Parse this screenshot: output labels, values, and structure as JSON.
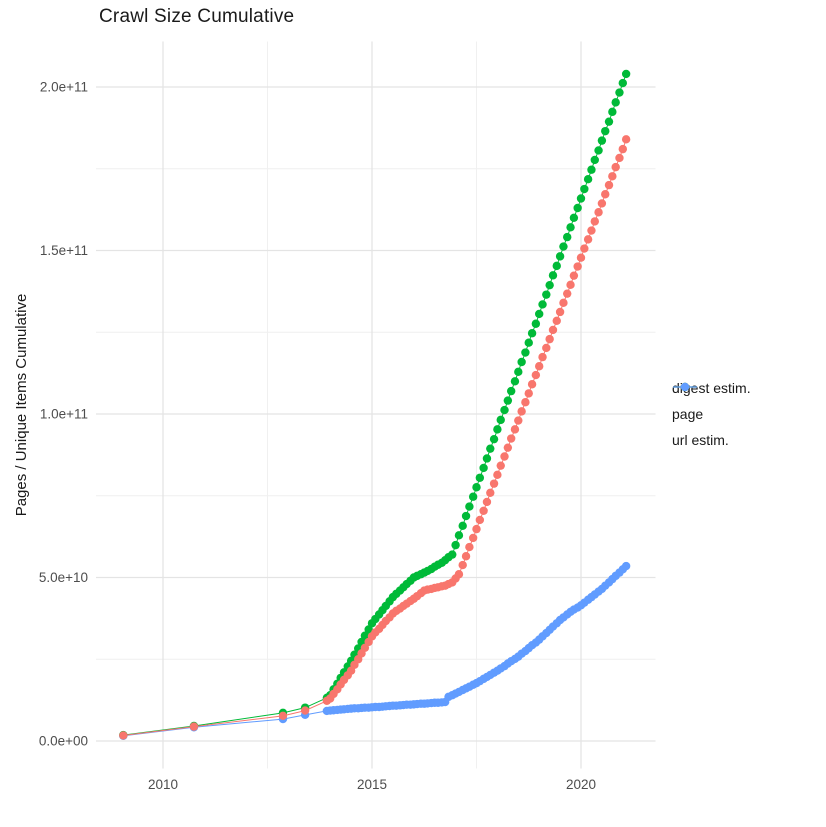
{
  "chart": {
    "title": "Crawl Size Cumulative",
    "y_axis_title": "Pages / Unique Items Cumulative"
  },
  "legend": {
    "items": [
      {
        "label": "digest estim.",
        "color": "#F8766D"
      },
      {
        "label": "page",
        "color": "#00BA38"
      },
      {
        "label": "url estim.",
        "color": "#619CFF"
      }
    ]
  },
  "chart_data": {
    "type": "scatter",
    "title": "Crawl Size Cumulative",
    "xlabel": "",
    "ylabel": "Pages / Unique Items Cumulative",
    "x_unit": "year",
    "y_value_multiplier": 1000000000,
    "note": "point values are in billions (1e9); y axis shows scientific notation",
    "xlim": [
      2008.4,
      2021.75
    ],
    "ylim_e9": [
      -8.5,
      214
    ],
    "grid": true,
    "legend_position": "right",
    "x_ticks": [
      {
        "value": 2010,
        "label": "2010"
      },
      {
        "value": 2015,
        "label": "2015"
      },
      {
        "value": 2020,
        "label": "2020"
      }
    ],
    "x_minor_gridlines": [
      2012.5,
      2017.5
    ],
    "y_ticks": [
      {
        "value": 0,
        "label": "0.0e+00"
      },
      {
        "value": 50,
        "label": "5.0e+10"
      },
      {
        "value": 100,
        "label": "1.0e+11"
      },
      {
        "value": 150,
        "label": "1.5e+11"
      },
      {
        "value": 200,
        "label": "2.0e+11"
      }
    ],
    "y_minor_gridlines": [
      25,
      75,
      125,
      175
    ],
    "series": [
      {
        "name": "digest estim.",
        "color": "#F8766D",
        "points": [
          [
            2009.05,
            1.7
          ],
          [
            2010.74,
            4.4
          ],
          [
            2012.87,
            7.7
          ],
          [
            2013.4,
            9.3
          ],
          [
            2013.92,
            12.3
          ],
          [
            2014.0,
            13.0
          ],
          [
            2014.08,
            14.4
          ],
          [
            2014.17,
            15.8
          ],
          [
            2014.25,
            17.3
          ],
          [
            2014.33,
            18.7
          ],
          [
            2014.42,
            20.1
          ],
          [
            2014.5,
            21.5
          ],
          [
            2014.58,
            23.3
          ],
          [
            2014.67,
            25.0
          ],
          [
            2014.75,
            26.8
          ],
          [
            2014.83,
            28.5
          ],
          [
            2014.92,
            30.3
          ],
          [
            2015.0,
            32.0
          ],
          [
            2015.08,
            33.2
          ],
          [
            2015.17,
            34.3
          ],
          [
            2015.25,
            35.5
          ],
          [
            2015.33,
            36.7
          ],
          [
            2015.42,
            37.8
          ],
          [
            2015.5,
            39.0
          ],
          [
            2015.58,
            39.8
          ],
          [
            2015.67,
            40.5
          ],
          [
            2015.75,
            41.3
          ],
          [
            2015.83,
            42.0
          ],
          [
            2015.92,
            42.8
          ],
          [
            2016.0,
            43.5
          ],
          [
            2016.08,
            44.3
          ],
          [
            2016.17,
            45.2
          ],
          [
            2016.25,
            46.0
          ],
          [
            2016.33,
            46.3
          ],
          [
            2016.42,
            46.5
          ],
          [
            2016.5,
            46.8
          ],
          [
            2016.58,
            47.0
          ],
          [
            2016.67,
            47.3
          ],
          [
            2016.75,
            47.5
          ],
          [
            2016.83,
            48.0
          ],
          [
            2016.92,
            48.5
          ],
          [
            2017.0,
            49.7
          ],
          [
            2017.08,
            51.0
          ],
          [
            2017.17,
            53.8
          ],
          [
            2017.25,
            56.5
          ],
          [
            2017.33,
            59.3
          ],
          [
            2017.42,
            62.1
          ],
          [
            2017.5,
            64.8
          ],
          [
            2017.58,
            67.6
          ],
          [
            2017.67,
            70.4
          ],
          [
            2017.75,
            73.1
          ],
          [
            2017.83,
            75.9
          ],
          [
            2017.92,
            78.7
          ],
          [
            2018.0,
            81.4
          ],
          [
            2018.08,
            84.2
          ],
          [
            2018.17,
            87.0
          ],
          [
            2018.25,
            89.7
          ],
          [
            2018.33,
            92.5
          ],
          [
            2018.42,
            95.3
          ],
          [
            2018.5,
            98.0
          ],
          [
            2018.58,
            100.8
          ],
          [
            2018.67,
            103.6
          ],
          [
            2018.75,
            106.3
          ],
          [
            2018.83,
            109.1
          ],
          [
            2018.92,
            111.9
          ],
          [
            2019.0,
            114.6
          ],
          [
            2019.08,
            117.4
          ],
          [
            2019.17,
            120.2
          ],
          [
            2019.25,
            122.9
          ],
          [
            2019.33,
            125.7
          ],
          [
            2019.42,
            128.5
          ],
          [
            2019.5,
            131.2
          ],
          [
            2019.58,
            134.0
          ],
          [
            2019.67,
            136.8
          ],
          [
            2019.75,
            139.5
          ],
          [
            2019.83,
            142.3
          ],
          [
            2019.92,
            145.1
          ],
          [
            2020.0,
            147.8
          ],
          [
            2020.08,
            150.6
          ],
          [
            2020.17,
            153.4
          ],
          [
            2020.25,
            156.1
          ],
          [
            2020.33,
            158.9
          ],
          [
            2020.42,
            161.7
          ],
          [
            2020.5,
            164.4
          ],
          [
            2020.58,
            167.2
          ],
          [
            2020.67,
            170.0
          ],
          [
            2020.75,
            172.7
          ],
          [
            2020.83,
            175.5
          ],
          [
            2020.92,
            178.3
          ],
          [
            2021.0,
            181.0
          ],
          [
            2021.08,
            184.0
          ]
        ]
      },
      {
        "name": "page",
        "color": "#00BA38",
        "points": [
          [
            2009.05,
            1.8
          ],
          [
            2010.74,
            4.6
          ],
          [
            2012.87,
            8.6
          ],
          [
            2013.4,
            10.2
          ],
          [
            2013.92,
            13.2
          ],
          [
            2014.0,
            14.0
          ],
          [
            2014.08,
            15.8
          ],
          [
            2014.17,
            17.5
          ],
          [
            2014.25,
            19.3
          ],
          [
            2014.33,
            21.0
          ],
          [
            2014.42,
            22.8
          ],
          [
            2014.5,
            24.5
          ],
          [
            2014.58,
            26.4
          ],
          [
            2014.67,
            28.3
          ],
          [
            2014.75,
            30.3
          ],
          [
            2014.83,
            32.2
          ],
          [
            2014.92,
            34.1
          ],
          [
            2015.0,
            36.0
          ],
          [
            2015.08,
            37.3
          ],
          [
            2015.17,
            38.7
          ],
          [
            2015.25,
            40.0
          ],
          [
            2015.33,
            41.3
          ],
          [
            2015.42,
            42.7
          ],
          [
            2015.5,
            44.0
          ],
          [
            2015.58,
            45.0
          ],
          [
            2015.67,
            46.0
          ],
          [
            2015.75,
            47.0
          ],
          [
            2015.83,
            48.0
          ],
          [
            2015.92,
            49.0
          ],
          [
            2016.0,
            50.0
          ],
          [
            2016.08,
            50.5
          ],
          [
            2016.17,
            51.0
          ],
          [
            2016.25,
            51.5
          ],
          [
            2016.33,
            52.0
          ],
          [
            2016.42,
            52.6
          ],
          [
            2016.5,
            53.3
          ],
          [
            2016.58,
            53.9
          ],
          [
            2016.67,
            54.5
          ],
          [
            2016.75,
            55.3
          ],
          [
            2016.83,
            56.2
          ],
          [
            2016.92,
            57.0
          ],
          [
            2017.0,
            59.9
          ],
          [
            2017.08,
            62.9
          ],
          [
            2017.17,
            65.8
          ],
          [
            2017.25,
            68.8
          ],
          [
            2017.33,
            71.7
          ],
          [
            2017.42,
            74.7
          ],
          [
            2017.5,
            77.6
          ],
          [
            2017.58,
            80.5
          ],
          [
            2017.67,
            83.5
          ],
          [
            2017.75,
            86.4
          ],
          [
            2017.83,
            89.4
          ],
          [
            2017.92,
            92.3
          ],
          [
            2018.0,
            95.3
          ],
          [
            2018.08,
            98.2
          ],
          [
            2018.17,
            101.2
          ],
          [
            2018.25,
            104.1
          ],
          [
            2018.33,
            107.0
          ],
          [
            2018.42,
            110.0
          ],
          [
            2018.5,
            112.9
          ],
          [
            2018.58,
            115.9
          ],
          [
            2018.67,
            118.8
          ],
          [
            2018.75,
            121.8
          ],
          [
            2018.83,
            124.7
          ],
          [
            2018.92,
            127.6
          ],
          [
            2019.0,
            130.6
          ],
          [
            2019.08,
            133.5
          ],
          [
            2019.17,
            136.5
          ],
          [
            2019.25,
            139.4
          ],
          [
            2019.33,
            142.4
          ],
          [
            2019.42,
            145.3
          ],
          [
            2019.5,
            148.2
          ],
          [
            2019.58,
            151.2
          ],
          [
            2019.67,
            154.1
          ],
          [
            2019.75,
            157.1
          ],
          [
            2019.83,
            160.0
          ],
          [
            2019.92,
            163.0
          ],
          [
            2020.0,
            165.9
          ],
          [
            2020.08,
            168.8
          ],
          [
            2020.17,
            171.8
          ],
          [
            2020.25,
            174.7
          ],
          [
            2020.33,
            177.7
          ],
          [
            2020.42,
            180.6
          ],
          [
            2020.5,
            183.6
          ],
          [
            2020.58,
            186.5
          ],
          [
            2020.67,
            189.4
          ],
          [
            2020.75,
            192.4
          ],
          [
            2020.83,
            195.3
          ],
          [
            2020.92,
            198.3
          ],
          [
            2021.0,
            201.2
          ],
          [
            2021.08,
            204.0
          ]
        ]
      },
      {
        "name": "url estim.",
        "color": "#619CFF",
        "points": [
          [
            2009.05,
            1.6
          ],
          [
            2010.74,
            4.2
          ],
          [
            2012.87,
            6.7
          ],
          [
            2013.4,
            8.0
          ],
          [
            2013.92,
            9.2
          ],
          [
            2014.0,
            9.3
          ],
          [
            2014.08,
            9.4
          ],
          [
            2014.17,
            9.5
          ],
          [
            2014.25,
            9.6
          ],
          [
            2014.33,
            9.7
          ],
          [
            2014.42,
            9.8
          ],
          [
            2014.5,
            9.9
          ],
          [
            2014.58,
            10.0
          ],
          [
            2014.67,
            10.0
          ],
          [
            2014.75,
            10.1
          ],
          [
            2014.83,
            10.2
          ],
          [
            2014.92,
            10.2
          ],
          [
            2015.0,
            10.3
          ],
          [
            2015.08,
            10.4
          ],
          [
            2015.17,
            10.4
          ],
          [
            2015.25,
            10.5
          ],
          [
            2015.33,
            10.6
          ],
          [
            2015.42,
            10.7
          ],
          [
            2015.5,
            10.8
          ],
          [
            2015.58,
            10.8
          ],
          [
            2015.67,
            10.9
          ],
          [
            2015.75,
            11.0
          ],
          [
            2015.83,
            11.1
          ],
          [
            2015.92,
            11.1
          ],
          [
            2016.0,
            11.2
          ],
          [
            2016.08,
            11.3
          ],
          [
            2016.17,
            11.4
          ],
          [
            2016.25,
            11.4
          ],
          [
            2016.33,
            11.5
          ],
          [
            2016.42,
            11.6
          ],
          [
            2016.5,
            11.7
          ],
          [
            2016.58,
            11.7
          ],
          [
            2016.67,
            11.8
          ],
          [
            2016.75,
            11.9
          ],
          [
            2016.83,
            13.5
          ],
          [
            2016.92,
            14.0
          ],
          [
            2017.0,
            14.5
          ],
          [
            2017.08,
            15.0
          ],
          [
            2017.17,
            15.6
          ],
          [
            2017.25,
            16.1
          ],
          [
            2017.33,
            16.6
          ],
          [
            2017.42,
            17.2
          ],
          [
            2017.5,
            17.7
          ],
          [
            2017.58,
            18.3
          ],
          [
            2017.67,
            19.0
          ],
          [
            2017.75,
            19.6
          ],
          [
            2017.83,
            20.2
          ],
          [
            2017.92,
            20.9
          ],
          [
            2018.0,
            21.5
          ],
          [
            2018.08,
            22.2
          ],
          [
            2018.17,
            22.9
          ],
          [
            2018.25,
            23.7
          ],
          [
            2018.33,
            24.4
          ],
          [
            2018.42,
            25.1
          ],
          [
            2018.5,
            25.8
          ],
          [
            2018.58,
            26.7
          ],
          [
            2018.67,
            27.5
          ],
          [
            2018.75,
            28.4
          ],
          [
            2018.83,
            29.3
          ],
          [
            2018.92,
            30.1
          ],
          [
            2019.0,
            31.0
          ],
          [
            2019.08,
            32.0
          ],
          [
            2019.17,
            33.0
          ],
          [
            2019.25,
            34.0
          ],
          [
            2019.33,
            35.0
          ],
          [
            2019.42,
            36.0
          ],
          [
            2019.5,
            37.0
          ],
          [
            2019.58,
            37.8
          ],
          [
            2019.67,
            38.7
          ],
          [
            2019.75,
            39.5
          ],
          [
            2019.83,
            40.2
          ],
          [
            2019.92,
            40.8
          ],
          [
            2020.0,
            41.5
          ],
          [
            2020.08,
            42.3
          ],
          [
            2020.17,
            43.2
          ],
          [
            2020.25,
            44.0
          ],
          [
            2020.33,
            44.8
          ],
          [
            2020.42,
            45.7
          ],
          [
            2020.5,
            46.5
          ],
          [
            2020.58,
            47.5
          ],
          [
            2020.67,
            48.5
          ],
          [
            2020.75,
            49.5
          ],
          [
            2020.83,
            50.5
          ],
          [
            2020.92,
            51.5
          ],
          [
            2021.0,
            52.5
          ],
          [
            2021.08,
            53.5
          ]
        ]
      }
    ],
    "style": {
      "background": "#ffffff",
      "major_gridline_color": "#e4e4e4",
      "minor_gridline_color": "#efefef",
      "tick_label_color": "#4d4d4d",
      "title_color": "#1a1a1a",
      "point_radius": 4.2
    }
  }
}
